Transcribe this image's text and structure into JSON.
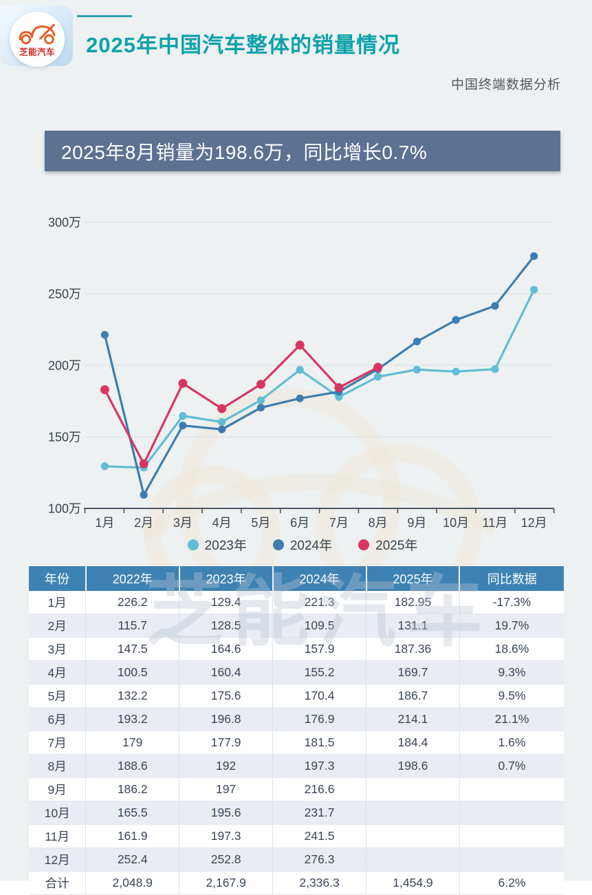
{
  "header": {
    "logo_text": "芝能汽车",
    "title": "2025年中国汽车整体的销量情况",
    "subtitle": "中国终端数据分析"
  },
  "banner": {
    "text": "2025年8月销量为198.6万，同比增长0.7%"
  },
  "chart_data": {
    "type": "line",
    "title": "",
    "unit": "万",
    "categories": [
      "1月",
      "2月",
      "3月",
      "4月",
      "5月",
      "6月",
      "7月",
      "8月",
      "9月",
      "10月",
      "11月",
      "12月"
    ],
    "series": [
      {
        "name": "2023年",
        "color": "#5fbdd4",
        "values": [
          129.4,
          128.5,
          164.6,
          160.4,
          175.6,
          196.8,
          177.9,
          192,
          197,
          195.6,
          197.3,
          252.8
        ]
      },
      {
        "name": "2024年",
        "color": "#3d7db0",
        "values": [
          221.3,
          109.5,
          157.9,
          155.2,
          170.4,
          176.9,
          181.5,
          197.3,
          216.6,
          231.7,
          241.5,
          276.3
        ]
      },
      {
        "name": "2025年",
        "color": "#d93563",
        "values": [
          182.95,
          131.1,
          187.36,
          169.7,
          186.7,
          214.1,
          184.4,
          198.6
        ]
      }
    ],
    "ylim": [
      100,
      300
    ],
    "ytick_values": [
      100,
      150,
      200,
      250,
      300
    ],
    "ytick_labels": [
      "100万",
      "150万",
      "200万",
      "250万",
      "300万"
    ],
    "grid": true,
    "legend_position": "bottom"
  },
  "table": {
    "columns": [
      "年份",
      "2022年",
      "2023年",
      "2024年",
      "2025年",
      "同比数据"
    ],
    "rows": [
      [
        "1月",
        "226.2",
        "129.4",
        "221.3",
        "182.95",
        "-17.3%"
      ],
      [
        "2月",
        "115.7",
        "128.5",
        "109.5",
        "131.1",
        "19.7%"
      ],
      [
        "3月",
        "147.5",
        "164.6",
        "157.9",
        "187.36",
        "18.6%"
      ],
      [
        "4月",
        "100.5",
        "160.4",
        "155.2",
        "169.7",
        "9.3%"
      ],
      [
        "5月",
        "132.2",
        "175.6",
        "170.4",
        "186.7",
        "9.5%"
      ],
      [
        "6月",
        "193.2",
        "196.8",
        "176.9",
        "214.1",
        "21.1%"
      ],
      [
        "7月",
        "179",
        "177.9",
        "181.5",
        "184.4",
        "1.6%"
      ],
      [
        "8月",
        "188.6",
        "192",
        "197.3",
        "198.6",
        "0.7%"
      ],
      [
        "9月",
        "186.2",
        "197",
        "216.6",
        "",
        ""
      ],
      [
        "10月",
        "165.5",
        "195.6",
        "231.7",
        "",
        ""
      ],
      [
        "11月",
        "161.9",
        "197.3",
        "241.5",
        "",
        ""
      ],
      [
        "12月",
        "252.4",
        "252.8",
        "276.3",
        "",
        ""
      ],
      [
        "合计",
        "2,048.9",
        "2,167.9",
        "2,336.3",
        "1,454.9",
        "6.2%"
      ]
    ]
  },
  "watermark": {
    "text": "芝能汽车"
  }
}
